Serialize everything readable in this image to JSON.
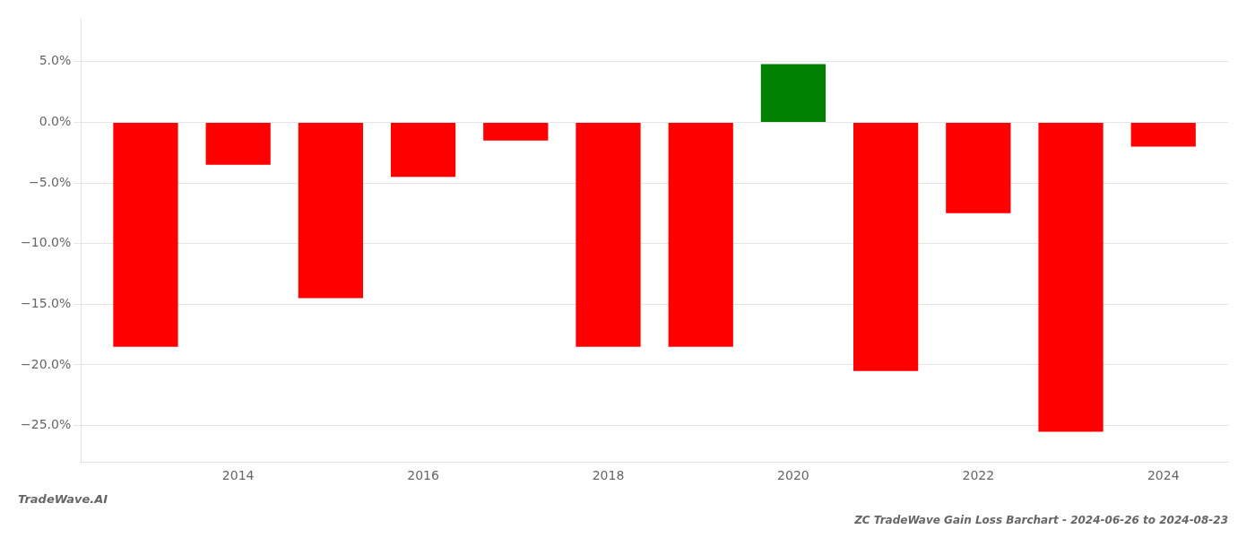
{
  "chart_data": {
    "type": "bar",
    "title": "ZC TradeWave Gain Loss Barchart - 2024-06-26 to 2024-08-23",
    "annotations": [
      "TradeWave.AI"
    ],
    "x": [
      2013,
      2014,
      2015,
      2016,
      2017,
      2018,
      2019,
      2020,
      2021,
      2022,
      2023,
      2024
    ],
    "values": [
      -0.185,
      -0.035,
      -0.145,
      -0.045,
      -0.015,
      -0.185,
      -0.185,
      0.048,
      -0.205,
      -0.075,
      -0.255,
      -0.02
    ],
    "colors": [
      "#ff0000",
      "#ff0000",
      "#ff0000",
      "#ff0000",
      "#ff0000",
      "#ff0000",
      "#ff0000",
      "#008000",
      "#ff0000",
      "#ff0000",
      "#ff0000",
      "#ff0000"
    ],
    "xlim": [
      2012.3,
      2024.7
    ],
    "xticks": [
      2014,
      2016,
      2018,
      2020,
      2022,
      2024
    ],
    "ylim": [
      -0.28,
      0.085
    ],
    "yticks": [
      {
        "value": 0.05,
        "label": "5.0%"
      },
      {
        "value": 0.0,
        "label": "0.0%"
      },
      {
        "value": -0.05,
        "label": "−5.0%"
      },
      {
        "value": -0.1,
        "label": "−10.0%"
      },
      {
        "value": -0.15,
        "label": "−15.0%"
      },
      {
        "value": -0.2,
        "label": "−20.0%"
      },
      {
        "value": -0.25,
        "label": "−25.0%"
      }
    ],
    "grid": true
  }
}
